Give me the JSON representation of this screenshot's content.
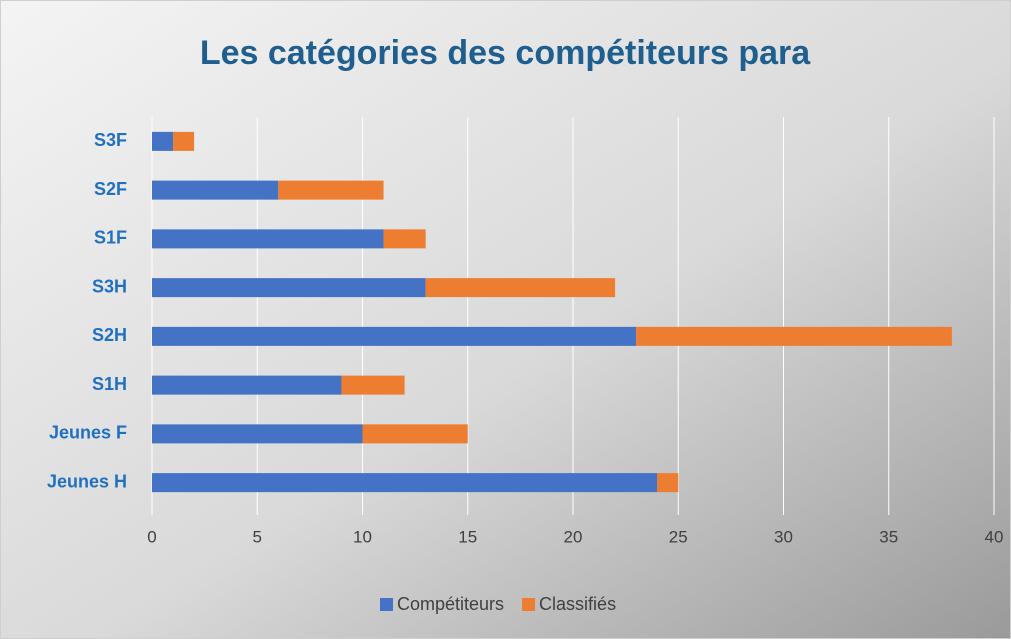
{
  "chart_data": {
    "type": "bar",
    "orientation": "horizontal",
    "stacked": true,
    "title": "Les catégories des compétiteurs para",
    "categories": [
      "S3F",
      "S2F",
      "S1F",
      "S3H",
      "S2H",
      "S1H",
      "Jeunes F",
      "Jeunes H"
    ],
    "series": [
      {
        "name": "Compétiteurs",
        "color": "#4472c4",
        "values": [
          1,
          6,
          11,
          13,
          23,
          9,
          10,
          24
        ]
      },
      {
        "name": "Classifiés",
        "color": "#ed7d31",
        "values": [
          1,
          5,
          2,
          9,
          15,
          3,
          5,
          1
        ]
      }
    ],
    "xlim": [
      0,
      40
    ],
    "xticks": [
      0,
      5,
      10,
      15,
      20,
      25,
      30,
      35,
      40
    ],
    "grid": true,
    "legend": "bottom"
  }
}
